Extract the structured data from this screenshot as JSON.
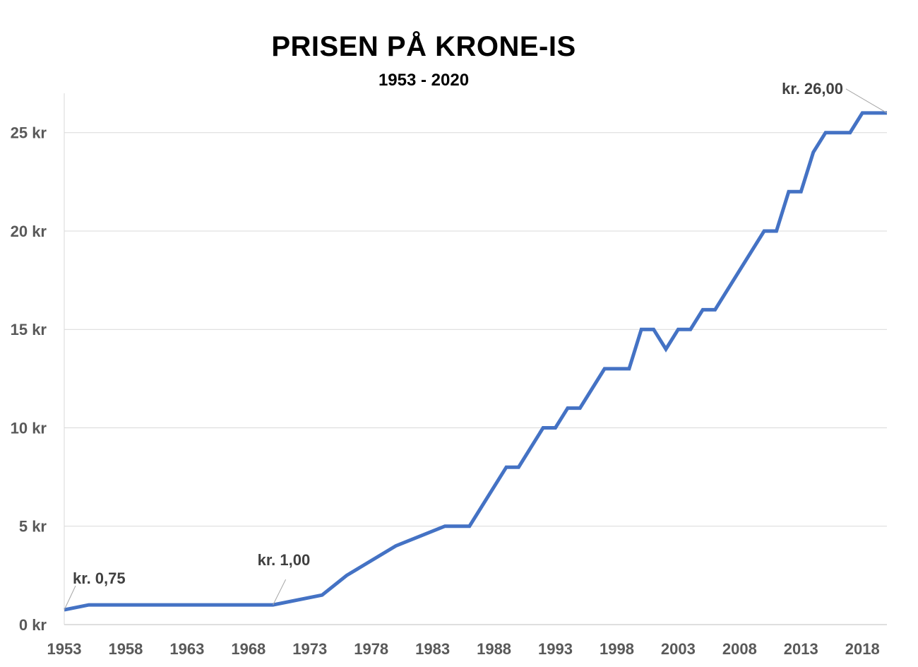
{
  "chart_data": {
    "type": "line",
    "title": "PRISEN PÅ KRONE-IS",
    "subtitle": "1953 - 2020",
    "xlabel": "",
    "ylabel": "",
    "xlim": [
      1953,
      2020
    ],
    "ylim": [
      0,
      27
    ],
    "x_ticks": [
      "1953",
      "1958",
      "1963",
      "1968",
      "1973",
      "1978",
      "1983",
      "1988",
      "1993",
      "1998",
      "2003",
      "2008",
      "2013",
      "2018"
    ],
    "y_ticks": [
      "0 kr",
      "5 kr",
      "10 kr",
      "15 kr",
      "20 kr",
      "25 kr"
    ],
    "y_tick_values": [
      0,
      5,
      10,
      15,
      20,
      25
    ],
    "grid": "horizontal",
    "line_color": "#4472C4",
    "series": [
      {
        "x": [
          1953,
          1955,
          1970,
          1974,
          1976,
          1980,
          1984,
          1986,
          1989,
          1990,
          1992,
          1993,
          1994,
          1995,
          1997,
          1999,
          2000,
          2001,
          2002,
          2003,
          2004,
          2005,
          2006,
          2010,
          2011,
          2012,
          2013,
          2014,
          2015,
          2017,
          2018,
          2020
        ],
        "values": [
          0.75,
          1,
          1,
          1.5,
          2.5,
          4,
          5,
          5,
          8,
          8,
          10,
          10,
          11,
          11,
          13,
          13,
          15,
          15,
          14,
          15,
          15,
          16,
          16,
          20,
          20,
          22,
          22,
          24,
          25,
          25,
          26,
          26
        ]
      }
    ],
    "annotations": [
      {
        "text": "kr. 0,75",
        "x": 1953,
        "y": 0.75
      },
      {
        "text": "kr. 1,00",
        "x": 1970,
        "y": 1
      },
      {
        "text": "kr. 26,00",
        "x": 2020,
        "y": 26
      }
    ]
  }
}
